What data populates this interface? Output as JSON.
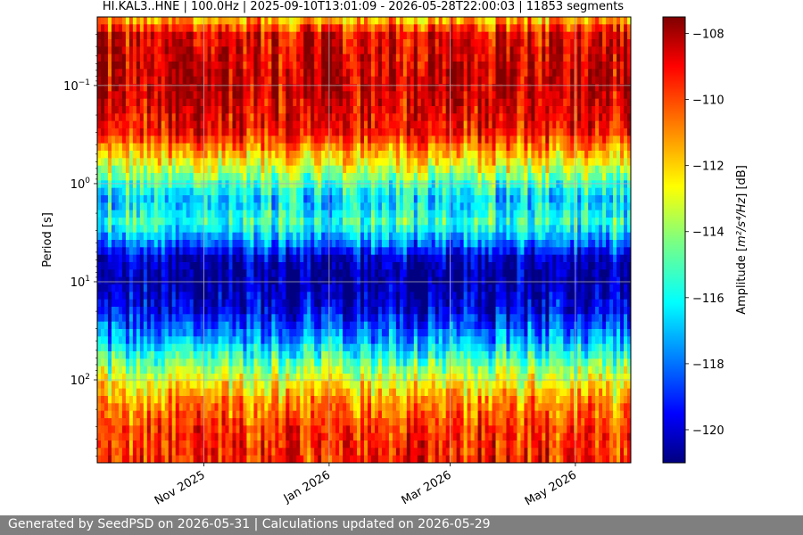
{
  "chart_data": {
    "type": "heatmap",
    "title": "HI.KAL3..HNE | 100.0Hz | 2025-09-10T13:01:09 - 2026-05-28T22:00:03 | 11853 segments",
    "xlabel": "",
    "ylabel": "Period [s]",
    "yscale": "log",
    "y_inverted": true,
    "ylim": [
      0.02,
      700
    ],
    "x_range": [
      "2025-09-10",
      "2026-05-28"
    ],
    "x_ticks": [
      {
        "date": "2025-11-01",
        "label": "Nov 2025"
      },
      {
        "date": "2026-01-01",
        "label": "Jan 2026"
      },
      {
        "date": "2026-03-01",
        "label": "Mar 2026"
      },
      {
        "date": "2026-05-01",
        "label": "May 2026"
      }
    ],
    "y_ticks": [
      {
        "value": 0.1,
        "label_base": "10",
        "label_exp": "−1"
      },
      {
        "value": 1,
        "label_base": "10",
        "label_exp": "0"
      },
      {
        "value": 10,
        "label_base": "10",
        "label_exp": "1"
      },
      {
        "value": 100,
        "label_base": "10",
        "label_exp": "2"
      }
    ],
    "grid": true,
    "colormap": "jet",
    "colorbar": {
      "label_prefix": "Amplitude [",
      "label_unit": "m²/s⁴/Hz",
      "label_suffix": "] [dB]",
      "range": [
        -121,
        -107.5
      ],
      "ticks": [
        -108,
        -110,
        -112,
        -114,
        -116,
        -118,
        -120
      ]
    },
    "period_profile": [
      {
        "period": 0.02,
        "db": -112
      },
      {
        "period": 0.03,
        "db": -109
      },
      {
        "period": 0.1,
        "db": -108.5
      },
      {
        "period": 0.3,
        "db": -109.5
      },
      {
        "period": 0.6,
        "db": -112.5
      },
      {
        "period": 1.0,
        "db": -115
      },
      {
        "period": 1.5,
        "db": -116.5
      },
      {
        "period": 2.5,
        "db": -115
      },
      {
        "period": 4,
        "db": -117.5
      },
      {
        "period": 6,
        "db": -120
      },
      {
        "period": 10,
        "db": -120.5
      },
      {
        "period": 20,
        "db": -119.5
      },
      {
        "period": 40,
        "db": -117
      },
      {
        "period": 80,
        "db": -114
      },
      {
        "period": 150,
        "db": -111.5
      },
      {
        "period": 300,
        "db": -110
      },
      {
        "period": 700,
        "db": -109.5
      }
    ]
  },
  "footer": {
    "text": "Generated by SeedPSD on 2026-05-31 | Calculations updated on 2026-05-29"
  }
}
